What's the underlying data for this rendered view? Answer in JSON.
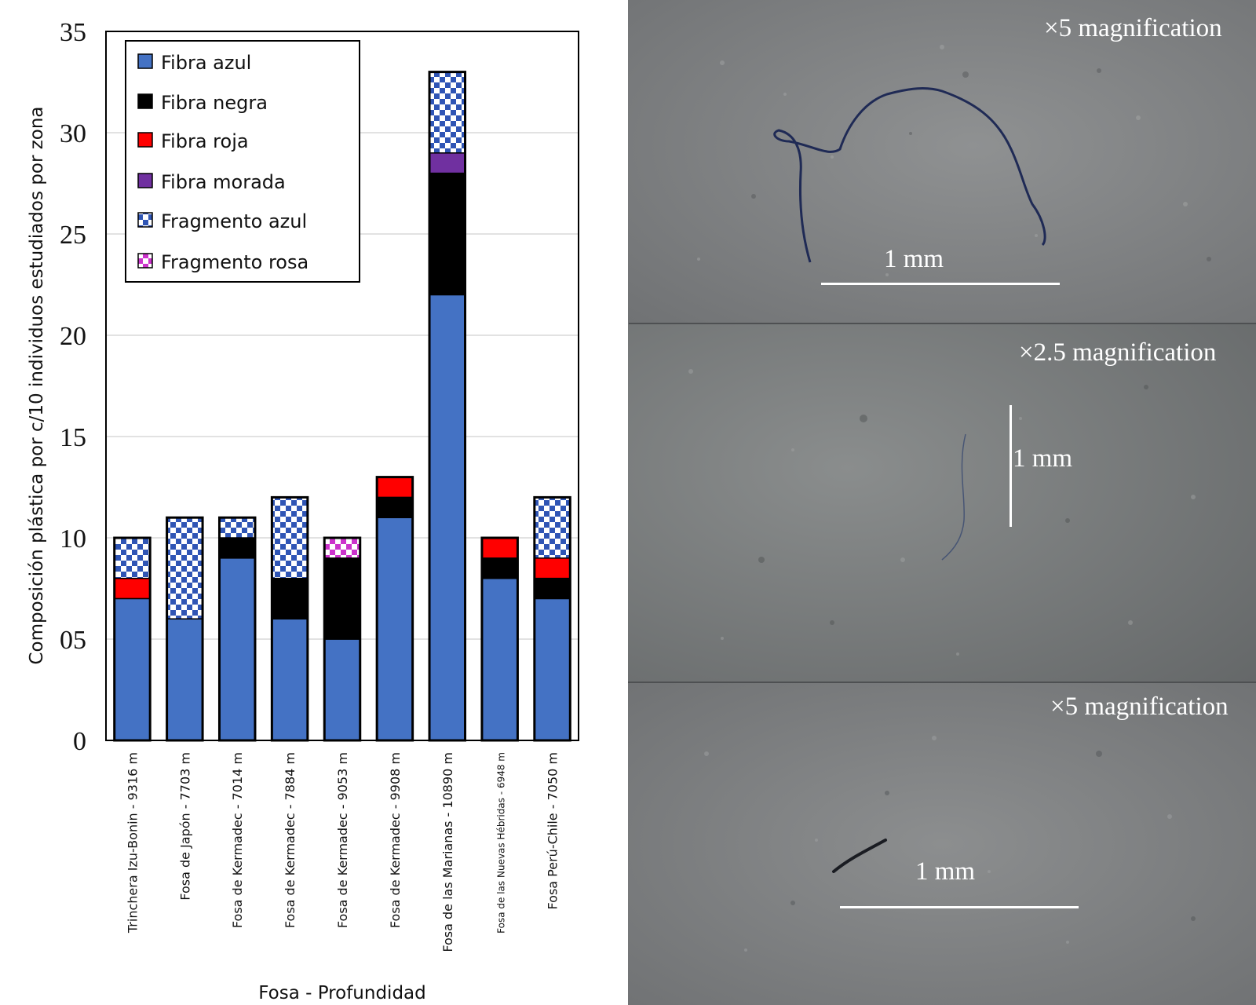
{
  "chart_data": {
    "type": "bar",
    "stacked": true,
    "title": "",
    "xlabel": "Fosa - Profundidad",
    "ylabel": "Composición plástica por c/10 individuos estudiados por zona",
    "ylim": [
      0,
      35
    ],
    "yticks": [
      "0",
      "05",
      "10",
      "15",
      "20",
      "25",
      "30",
      "35"
    ],
    "grid": true,
    "legend_position": "top-left",
    "categories": [
      "Trinchera Izu-Bonin - 9316 m",
      "Fosa de Japón - 7703 m",
      "Fosa de Kermadec - 7014 m",
      "Fosa de Kermadec - 7884 m",
      "Fosa de Kermadec - 9053 m",
      "Fosa de Kermadec - 9908 m",
      "Fosa de las Marianas - 10890 m",
      "Fosa de las Nuevas Hébridas - 6948 m",
      "Fosa Perú-Chile - 7050 m"
    ],
    "series": [
      {
        "name": "Fibra azul",
        "color": "#4472C4",
        "pattern": "solid",
        "values": [
          7,
          6,
          9,
          6,
          5,
          11,
          22,
          8,
          7
        ]
      },
      {
        "name": "Fibra negra",
        "color": "#000000",
        "pattern": "solid",
        "values": [
          0,
          0,
          1,
          2,
          4,
          1,
          6,
          1,
          1
        ]
      },
      {
        "name": "Fibra roja",
        "color": "#FF0000",
        "pattern": "solid",
        "values": [
          1,
          0,
          0,
          0,
          0,
          1,
          0,
          1,
          1
        ]
      },
      {
        "name": "Fibra morada",
        "color": "#7030A0",
        "pattern": "solid",
        "values": [
          0,
          0,
          0,
          0,
          0,
          0,
          1,
          0,
          0
        ]
      },
      {
        "name": "Fragmento azul",
        "color": "#2F55B5",
        "pattern": "checker",
        "values": [
          2,
          5,
          1,
          4,
          0,
          0,
          4,
          0,
          3
        ]
      },
      {
        "name": "Fragmento rosa",
        "color": "#CC33CC",
        "pattern": "checker",
        "values": [
          0,
          0,
          0,
          0,
          1,
          0,
          0,
          0,
          0
        ]
      }
    ]
  },
  "photos": [
    {
      "magnification": "×5 magnification",
      "scale_label": "1 mm"
    },
    {
      "magnification": "×2.5 magnification",
      "scale_label": "1 mm"
    },
    {
      "magnification": "×5 magnification",
      "scale_label": "1 mm"
    }
  ]
}
